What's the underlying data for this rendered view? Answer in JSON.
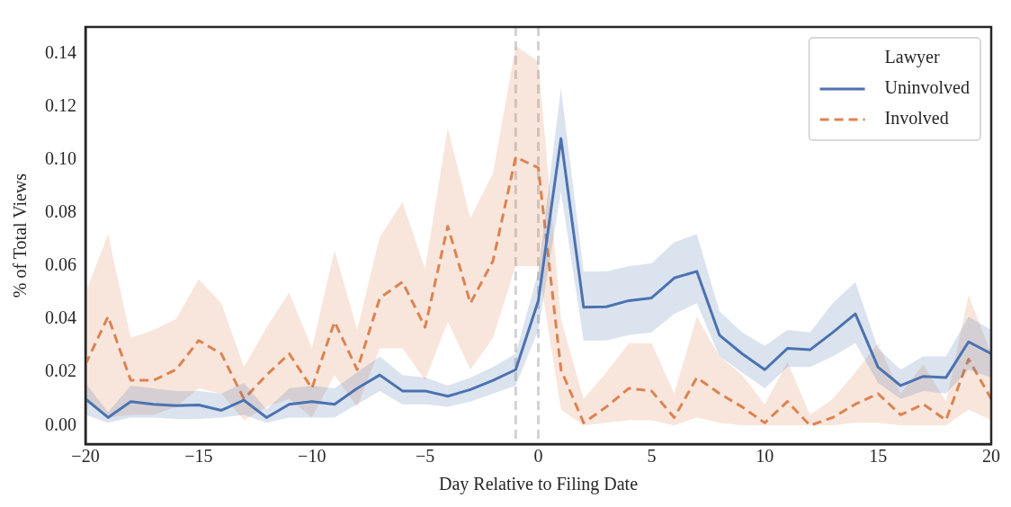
{
  "chart_data": {
    "type": "line",
    "xlabel": "Day Relative to Filing Date",
    "ylabel": "% of Total Views",
    "legend_title": "Lawyer",
    "legend": "top right",
    "grid": false,
    "x": [
      -20,
      -19,
      -18,
      -17,
      -16,
      -15,
      -14,
      -13,
      -12,
      -11,
      -10,
      -9,
      -8,
      -7,
      -6,
      -5,
      -4,
      -3,
      -2,
      -1,
      0,
      1,
      2,
      3,
      4,
      5,
      6,
      7,
      8,
      9,
      10,
      11,
      12,
      13,
      14,
      15,
      16,
      17,
      18,
      19,
      20
    ],
    "xlim": [
      -20,
      20
    ],
    "xticks": [
      {
        "value": -20,
        "label": "−20"
      },
      {
        "value": -15,
        "label": "−15"
      },
      {
        "value": -10,
        "label": "−10"
      },
      {
        "value": -5,
        "label": "−5"
      },
      0,
      5,
      10,
      15,
      20
    ],
    "ylim": [
      -0.007,
      0.15
    ],
    "yticks": [
      {
        "value": 0,
        "label": "0.00"
      },
      {
        "value": 0.02,
        "label": "0.02"
      },
      {
        "value": 0.04,
        "label": "0.04"
      },
      {
        "value": 0.06,
        "label": "0.06"
      },
      {
        "value": 0.08,
        "label": "0.08"
      },
      {
        "value": 0.1,
        "label": "0.10"
      },
      {
        "value": 0.12,
        "label": "0.12"
      },
      {
        "value": 0.14,
        "label": "0.14"
      }
    ],
    "ref_lines": [
      {
        "axis": "x",
        "value": -1,
        "color": "#d3d3d3",
        "line_style": "dashed"
      },
      {
        "axis": "x",
        "value": 0,
        "color": "#d3d3d3",
        "line_style": "dashed"
      }
    ],
    "series": [
      {
        "name": "Uninvolved",
        "color": "#4c72b0",
        "line_style": "solid",
        "values": [
          0.01,
          0.003,
          0.009,
          0.008,
          0.0075,
          0.0077,
          0.0057,
          0.0095,
          0.003,
          0.008,
          0.009,
          0.008,
          0.014,
          0.019,
          0.013,
          0.013,
          0.011,
          0.0135,
          0.017,
          0.021,
          0.047,
          0.108,
          0.0445,
          0.0447,
          0.047,
          0.048,
          0.0555,
          0.058,
          0.034,
          0.027,
          0.021,
          0.029,
          0.0285,
          0.035,
          0.042,
          0.022,
          0.015,
          0.0185,
          0.018,
          0.0315,
          0.027
        ],
        "lower": [
          0.004,
          0.001,
          0.003,
          0.003,
          0.0025,
          0.0025,
          0.003,
          0.004,
          0.001,
          0.003,
          0.003,
          0.003,
          0.008,
          0.013,
          0.008,
          0.008,
          0.007,
          0.009,
          0.012,
          0.015,
          0.036,
          0.088,
          0.032,
          0.032,
          0.034,
          0.035,
          0.042,
          0.046,
          0.026,
          0.02,
          0.014,
          0.022,
          0.022,
          0.026,
          0.031,
          0.016,
          0.01,
          0.013,
          0.012,
          0.021,
          0.018
        ],
        "upper": [
          0.016,
          0.005,
          0.015,
          0.014,
          0.013,
          0.013,
          0.012,
          0.016,
          0.006,
          0.014,
          0.015,
          0.014,
          0.02,
          0.026,
          0.019,
          0.018,
          0.015,
          0.018,
          0.022,
          0.027,
          0.058,
          0.127,
          0.058,
          0.058,
          0.06,
          0.061,
          0.069,
          0.072,
          0.043,
          0.035,
          0.03,
          0.036,
          0.035,
          0.046,
          0.054,
          0.029,
          0.021,
          0.026,
          0.026,
          0.041,
          0.036
        ]
      },
      {
        "name": "Involved",
        "color": "#dd8452",
        "line_style": "dashed",
        "values": [
          0.023,
          0.041,
          0.017,
          0.017,
          0.021,
          0.032,
          0.027,
          0.01,
          0.019,
          0.027,
          0.014,
          0.039,
          0.021,
          0.048,
          0.054,
          0.037,
          0.075,
          0.046,
          0.062,
          0.101,
          0.097,
          0.021,
          0.001,
          0.007,
          0.014,
          0.013,
          0.003,
          0.018,
          0.012,
          0.007,
          0.001,
          0.009,
          0.0,
          0.003,
          0.008,
          0.012,
          0.004,
          0.008,
          0.002,
          0.025,
          0.01
        ],
        "lower": [
          0.009,
          0.003,
          0.004,
          0.004,
          0.007,
          0.014,
          0.012,
          0.002,
          0.007,
          0.01,
          0.003,
          0.019,
          0.007,
          0.029,
          0.029,
          0.017,
          0.039,
          0.021,
          0.033,
          0.06,
          0.06,
          0.006,
          0.0,
          0.001,
          0.002,
          0.002,
          0.0,
          0.003,
          0.001,
          0.0,
          0.0,
          0.0,
          0.0,
          0.0,
          0.001,
          0.001,
          0.0,
          0.0,
          0.0,
          0.006,
          0.002
        ],
        "upper": [
          0.05,
          0.072,
          0.033,
          0.036,
          0.04,
          0.055,
          0.046,
          0.022,
          0.037,
          0.05,
          0.029,
          0.066,
          0.036,
          0.071,
          0.084,
          0.059,
          0.112,
          0.078,
          0.095,
          0.143,
          0.137,
          0.04,
          0.01,
          0.02,
          0.031,
          0.031,
          0.012,
          0.041,
          0.026,
          0.019,
          0.008,
          0.024,
          0.004,
          0.01,
          0.02,
          0.031,
          0.012,
          0.023,
          0.009,
          0.049,
          0.027
        ]
      }
    ]
  }
}
